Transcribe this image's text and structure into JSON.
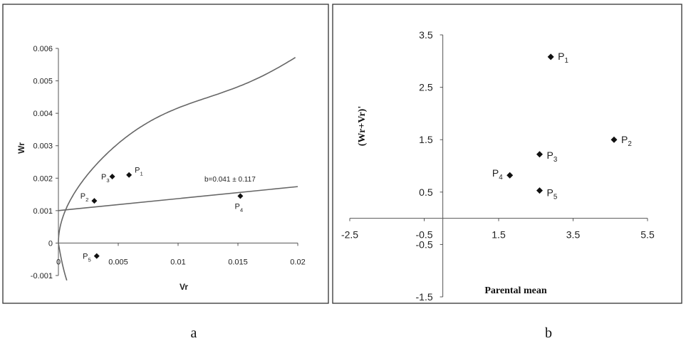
{
  "panel_labels": {
    "a": "a",
    "b": "b"
  },
  "chart_data": [
    {
      "type": "scatter",
      "title": "",
      "xlabel": "Vr",
      "ylabel": "Wr",
      "xlim": [
        0,
        0.02
      ],
      "ylim": [
        -0.001,
        0.006
      ],
      "x_ticks": [
        "0",
        "0.005",
        "0.01",
        "0.015",
        "0.02"
      ],
      "y_ticks": [
        "-0.001",
        "0",
        "0.001",
        "0.002",
        "0.003",
        "0.004",
        "0.005",
        "0.006"
      ],
      "points": [
        {
          "name": "P",
          "sub": "1",
          "x": 0.0059,
          "y": 0.0021
        },
        {
          "name": "P",
          "sub": "2",
          "x": 0.003,
          "y": 0.0013
        },
        {
          "name": "P",
          "sub": "3",
          "x": 0.0045,
          "y": 0.00205
        },
        {
          "name": "P",
          "sub": "4",
          "x": 0.0152,
          "y": 0.00145
        },
        {
          "name": "P",
          "sub": "5",
          "x": 0.0032,
          "y": -0.0004
        }
      ],
      "regression_line": {
        "label": "b=0.041 ± 0.117",
        "intercept": 0.001,
        "x_end": 0.02,
        "y_end": 0.00174
      },
      "parabola": {
        "note": "limiting parabola Wr^2 = Vp·Vr",
        "Vp": 0.00171
      },
      "grid": false
    },
    {
      "type": "scatter",
      "title": "",
      "xlabel": "Parental mean",
      "ylabel": "(Wr+Vr)'",
      "xlim": [
        -2.5,
        5.5
      ],
      "ylim": [
        -1.5,
        3.5
      ],
      "x_ticks": [
        "-2.5",
        "-0.5",
        "1.5",
        "3.5",
        "5.5"
      ],
      "y_ticks": [
        "-1.5",
        "-0.5",
        "0.5",
        "1.5",
        "2.5",
        "3.5"
      ],
      "points": [
        {
          "name": "P",
          "sub": "1",
          "x": 2.9,
          "y": 3.08
        },
        {
          "name": "P",
          "sub": "2",
          "x": 4.6,
          "y": 1.5
        },
        {
          "name": "P",
          "sub": "3",
          "x": 2.6,
          "y": 1.22
        },
        {
          "name": "P",
          "sub": "4",
          "x": 1.8,
          "y": 0.82
        },
        {
          "name": "P",
          "sub": "5",
          "x": 2.6,
          "y": 0.53
        }
      ],
      "grid": false
    }
  ]
}
